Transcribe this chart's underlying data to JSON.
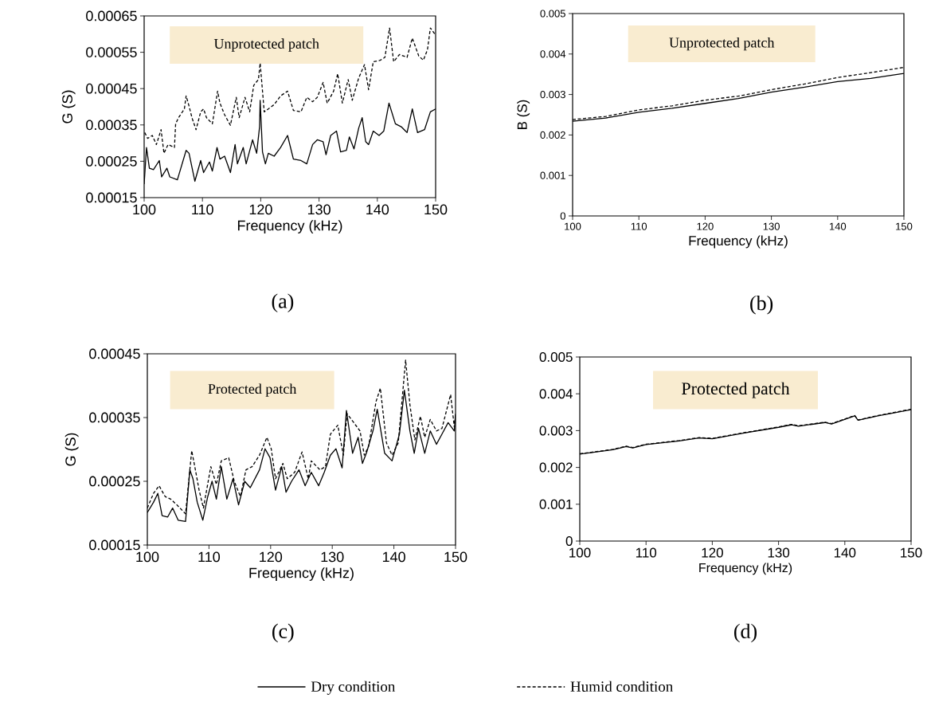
{
  "chart_data": [
    {
      "type": "line",
      "title": "Unprotected patch",
      "subtitle": "(a)",
      "xlabel": "Frequency (kHz)",
      "ylabel": "G (S)",
      "xlim": [
        100,
        150
      ],
      "xticks": [
        100,
        110,
        120,
        130,
        140,
        150
      ],
      "ylim": [
        0.00015,
        0.00065
      ],
      "yticks": [
        0.00015,
        0.00025,
        0.00035,
        0.00045,
        0.00055,
        0.00065
      ],
      "series": [
        {
          "color": "#000000",
          "line_style": "solid",
          "x": [
            100,
            100.4,
            100.9,
            101.6,
            102.6,
            103.0,
            103.9,
            104.4,
            105.7,
            107.2,
            107.7,
            108.7,
            109.7,
            110.2,
            111.2,
            111.7,
            112.5,
            113.0,
            113.8,
            114.8,
            115.6,
            116.0,
            117.0,
            117.5,
            118.6,
            119.3,
            119.8,
            119.9,
            120.3,
            120.8,
            121.3,
            122.3,
            123.4,
            124.6,
            125.6,
            126.9,
            127.9,
            128.9,
            129.7,
            130.7,
            131.2,
            132.0,
            133.0,
            133.7,
            134.7,
            135.2,
            136.0,
            136.8,
            137.4,
            138.0,
            138.5,
            139.3,
            140.3,
            141.1,
            142.0,
            143.1,
            144.1,
            145.1,
            146.0,
            146.9,
            148.1,
            149.1,
            150
          ],
          "values": [
            0.000187,
            0.000288,
            0.000231,
            0.000227,
            0.000252,
            0.000207,
            0.000231,
            0.000207,
            0.000199,
            0.00028,
            0.000272,
            0.000195,
            0.000252,
            0.000219,
            0.000248,
            0.000223,
            0.000288,
            0.000256,
            0.000264,
            0.000219,
            0.000296,
            0.000243,
            0.000288,
            0.000243,
            0.000309,
            0.000272,
            0.000345,
            0.000418,
            0.000276,
            0.000243,
            0.000272,
            0.000264,
            0.000288,
            0.000321,
            0.000256,
            0.000252,
            0.000243,
            0.000296,
            0.000309,
            0.000304,
            0.000268,
            0.000321,
            0.000333,
            0.000276,
            0.00028,
            0.000317,
            0.000284,
            0.000341,
            0.00037,
            0.000304,
            0.000296,
            0.000333,
            0.000321,
            0.000333,
            0.00041,
            0.000353,
            0.000345,
            0.000329,
            0.000394,
            0.000329,
            0.000337,
            0.000386,
            0.000394
          ]
        },
        {
          "color": "#000000",
          "line_style": "dashed",
          "x": [
            100.1,
            100.6,
            101.4,
            102.1,
            102.9,
            103.4,
            104.1,
            105.2,
            105.4,
            105.9,
            106.9,
            107.2,
            107.7,
            108.2,
            108.9,
            109.7,
            110.2,
            110.7,
            111.7,
            112.6,
            113.0,
            113.8,
            114.8,
            115.8,
            116.3,
            117.3,
            118.1,
            118.8,
            119.6,
            119.9,
            120.6,
            121.3,
            122.3,
            123.4,
            124.6,
            125.6,
            126.9,
            127.9,
            128.9,
            129.7,
            130.7,
            131.4,
            132.5,
            133.2,
            134.0,
            135.0,
            135.7,
            136.8,
            137.8,
            138.5,
            139.3,
            140.5,
            141.3,
            142.1,
            142.8,
            143.8,
            145.1,
            146.0,
            147.1,
            147.9,
            148.6,
            149.1,
            150
          ],
          "values": [
            0.000329,
            0.000313,
            0.000321,
            0.000296,
            0.000337,
            0.000272,
            0.000296,
            0.000288,
            0.000353,
            0.00037,
            0.000394,
            0.00043,
            0.000402,
            0.00037,
            0.000337,
            0.000386,
            0.000394,
            0.00037,
            0.000353,
            0.000443,
            0.00041,
            0.000378,
            0.000349,
            0.000426,
            0.00037,
            0.000426,
            0.000386,
            0.000459,
            0.000475,
            0.00052,
            0.000386,
            0.000394,
            0.000406,
            0.00043,
            0.000443,
            0.00039,
            0.000386,
            0.000426,
            0.000414,
            0.000426,
            0.000467,
            0.00041,
            0.000443,
            0.000491,
            0.00041,
            0.000475,
            0.000418,
            0.000479,
            0.000516,
            0.000447,
            0.000524,
            0.000528,
            0.000536,
            0.000617,
            0.000524,
            0.000544,
            0.000536,
            0.000589,
            0.00054,
            0.000528,
            0.000557,
            0.000617,
            0.000597
          ]
        }
      ]
    },
    {
      "type": "line",
      "title": "Unprotected patch",
      "subtitle": "(b)",
      "xlabel": "Frequency (kHz)",
      "ylabel": "B (S)",
      "xlim": [
        100,
        150
      ],
      "xticks": [
        100,
        110,
        120,
        130,
        140,
        150
      ],
      "ylim": [
        0,
        0.005
      ],
      "yticks": [
        0,
        0.001,
        0.002,
        0.003,
        0.004,
        0.005
      ],
      "series": [
        {
          "color": "#000000",
          "line_style": "solid",
          "x": [
            100,
            105,
            110,
            115,
            120,
            125,
            130,
            135,
            140,
            145,
            150
          ],
          "values": [
            0.00234,
            0.00242,
            0.00256,
            0.00266,
            0.00278,
            0.0029,
            0.00306,
            0.00318,
            0.00332,
            0.0034,
            0.00352
          ]
        },
        {
          "color": "#000000",
          "line_style": "dashed",
          "x": [
            100,
            105,
            110,
            115,
            120,
            125,
            130,
            135,
            140,
            145,
            150
          ],
          "values": [
            0.00238,
            0.00246,
            0.00262,
            0.00272,
            0.00286,
            0.00296,
            0.00312,
            0.00326,
            0.00342,
            0.00354,
            0.00367
          ]
        }
      ]
    },
    {
      "type": "line",
      "title": "Protected patch",
      "subtitle": "(c)",
      "xlabel": "Frequency (kHz)",
      "ylabel": "G (S)",
      "xlim": [
        100,
        150
      ],
      "xticks": [
        100,
        110,
        120,
        130,
        140,
        150
      ],
      "ylim": [
        0.00015,
        0.00045
      ],
      "yticks": [
        0.00015,
        0.00025,
        0.00035,
        0.00045
      ],
      "series": [
        {
          "color": "#000000",
          "line_style": "solid",
          "x": [
            100,
            101.0,
            101.7,
            102.4,
            103.3,
            104.1,
            105.0,
            106.2,
            106.9,
            107.4,
            108.1,
            109.0,
            109.8,
            110.5,
            111.2,
            112.0,
            112.9,
            113.9,
            114.8,
            115.8,
            116.7,
            118.2,
            119.1,
            119.9,
            120.8,
            121.8,
            122.5,
            123.4,
            124.6,
            125.6,
            126.6,
            127.8,
            128.7,
            129.7,
            130.6,
            131.6,
            132.3,
            133.3,
            134.2,
            134.9,
            135.6,
            136.6,
            137.3,
            138.5,
            139.7,
            140.9,
            141.7,
            142.6,
            143.3,
            144.0,
            145.0,
            145.9,
            146.9,
            147.8,
            148.8,
            149.8,
            150
          ],
          "values": [
            0.000201,
            0.000217,
            0.000231,
            0.000196,
            0.000194,
            0.000208,
            0.000189,
            0.000187,
            0.000268,
            0.000254,
            0.000217,
            0.000189,
            0.000226,
            0.00025,
            0.000222,
            0.000273,
            0.000222,
            0.000254,
            0.000213,
            0.00025,
            0.00024,
            0.000268,
            0.000301,
            0.000287,
            0.000236,
            0.000273,
            0.000233,
            0.00025,
            0.000268,
            0.000243,
            0.000264,
            0.000243,
            0.000264,
            0.000291,
            0.000301,
            0.000271,
            0.000361,
            0.000294,
            0.000319,
            0.000278,
            0.000296,
            0.000329,
            0.000363,
            0.000294,
            0.000282,
            0.000324,
            0.000393,
            0.000329,
            0.000294,
            0.000333,
            0.000294,
            0.000329,
            0.000308,
            0.000324,
            0.000342,
            0.000329,
            0.000356
          ]
        },
        {
          "color": "#000000",
          "line_style": "dashed",
          "x": [
            100,
            101.0,
            101.9,
            102.9,
            103.8,
            104.8,
            106.2,
            107.2,
            107.7,
            108.4,
            109.1,
            110.3,
            111.2,
            112.0,
            113.2,
            114.1,
            115.1,
            116.0,
            117.0,
            118.2,
            119.4,
            120.1,
            120.8,
            122.0,
            122.7,
            123.9,
            125.1,
            126.1,
            126.6,
            128.0,
            128.9,
            129.7,
            130.9,
            131.8,
            132.4,
            133.5,
            134.5,
            135.2,
            135.9,
            137.1,
            137.8,
            138.8,
            139.7,
            140.7,
            141.9,
            142.6,
            143.4,
            144.3,
            145.0,
            145.9,
            146.9,
            147.8,
            149.2,
            149.8,
            150
          ],
          "values": [
            0.000208,
            0.000231,
            0.000243,
            0.000226,
            0.000222,
            0.000213,
            0.000199,
            0.000298,
            0.000273,
            0.000236,
            0.000208,
            0.000273,
            0.000245,
            0.000282,
            0.000287,
            0.00025,
            0.000226,
            0.000268,
            0.000273,
            0.000291,
            0.000319,
            0.000301,
            0.000254,
            0.000278,
            0.000254,
            0.000264,
            0.000296,
            0.000254,
            0.000282,
            0.000268,
            0.000273,
            0.000324,
            0.000338,
            0.000291,
            0.000356,
            0.000342,
            0.000329,
            0.000291,
            0.000305,
            0.000375,
            0.000396,
            0.00031,
            0.000291,
            0.00031,
            0.00044,
            0.00037,
            0.000315,
            0.000352,
            0.000319,
            0.000347,
            0.000329,
            0.000333,
            0.000386,
            0.000335,
            0.000356
          ]
        }
      ]
    },
    {
      "type": "line",
      "title": "Protected patch",
      "subtitle": "(d)",
      "xlabel": "Frequency (kHz)",
      "legend": "bottom",
      "xlim": [
        100,
        150
      ],
      "xticks": [
        100,
        110,
        120,
        130,
        140,
        150
      ],
      "ylim": [
        0,
        0.005
      ],
      "yticks": [
        0,
        0.001,
        0.002,
        0.003,
        0.004,
        0.005
      ],
      "series": [
        {
          "name": "Dry condition",
          "color": "#000000",
          "line_style": "solid",
          "x": [
            100,
            105,
            107,
            108,
            110,
            115,
            118,
            120,
            125,
            130,
            132,
            133,
            137,
            138,
            141.5,
            142,
            145,
            150
          ],
          "values": [
            0.00236,
            0.00248,
            0.00257,
            0.00253,
            0.00262,
            0.00272,
            0.0028,
            0.00278,
            0.00294,
            0.00309,
            0.00316,
            0.00312,
            0.00322,
            0.00318,
            0.0034,
            0.00328,
            0.0034,
            0.00357
          ]
        },
        {
          "name": "Humid condition",
          "color": "#000000",
          "line_style": "dashed",
          "x": [
            100,
            105,
            107,
            108,
            110,
            115,
            118,
            120,
            125,
            130,
            132,
            133,
            137,
            138,
            141.5,
            142,
            145,
            150
          ],
          "values": [
            0.00237,
            0.00249,
            0.00258,
            0.00254,
            0.00263,
            0.00273,
            0.00281,
            0.00279,
            0.00295,
            0.0031,
            0.00317,
            0.00313,
            0.00323,
            0.00319,
            0.00341,
            0.00329,
            0.00341,
            0.00358
          ]
        }
      ]
    }
  ]
}
